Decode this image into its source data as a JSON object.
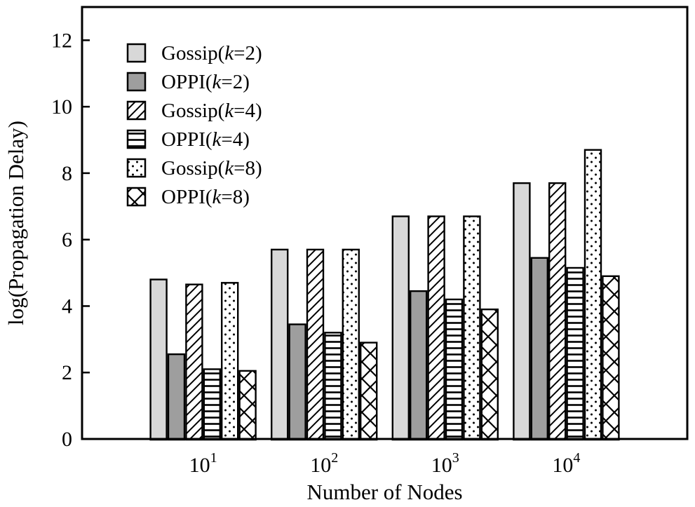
{
  "chart_data": {
    "type": "bar",
    "title": "",
    "xlabel": "Number of Nodes",
    "ylabel": "log(Propagation Delay)",
    "ylim": [
      0,
      13
    ],
    "yticks": [
      0,
      2,
      4,
      6,
      8,
      10,
      12
    ],
    "categories": [
      "10^1",
      "10^2",
      "10^3",
      "10^4"
    ],
    "categories_display": [
      {
        "base": "10",
        "exp": "1"
      },
      {
        "base": "10",
        "exp": "2"
      },
      {
        "base": "10",
        "exp": "3"
      },
      {
        "base": "10",
        "exp": "4"
      }
    ],
    "grid": false,
    "legend_position": "upper-left",
    "series": [
      {
        "label": "Gossip(k=2)",
        "name": "Gossip",
        "k": "2",
        "pattern": "solid-light",
        "values": [
          4.8,
          5.7,
          6.7,
          7.7
        ]
      },
      {
        "label": "OPPI(k=2)",
        "name": "OPPI",
        "k": "2",
        "pattern": "solid-dark",
        "values": [
          2.55,
          3.45,
          4.45,
          5.45
        ]
      },
      {
        "label": "Gossip(k=4)",
        "name": "Gossip",
        "k": "4",
        "pattern": "diagonal-hatch",
        "values": [
          4.65,
          5.7,
          6.7,
          7.7
        ]
      },
      {
        "label": "OPPI(k=4)",
        "name": "OPPI",
        "k": "4",
        "pattern": "horizontal-lines",
        "values": [
          2.1,
          3.2,
          4.2,
          5.15
        ]
      },
      {
        "label": "Gossip(k=8)",
        "name": "Gossip",
        "k": "8",
        "pattern": "dots",
        "values": [
          4.7,
          5.7,
          6.7,
          8.7
        ]
      },
      {
        "label": "OPPI(k=8)",
        "name": "OPPI",
        "k": "8",
        "pattern": "cross-hatch",
        "values": [
          2.05,
          2.9,
          3.9,
          4.9
        ]
      }
    ],
    "colors": {
      "light_gray": "#d8d8d8",
      "dark_gray": "#9e9e9e",
      "bar_border": "#000000",
      "frame": "#000000",
      "background": "#ffffff",
      "text": "#000000"
    }
  }
}
